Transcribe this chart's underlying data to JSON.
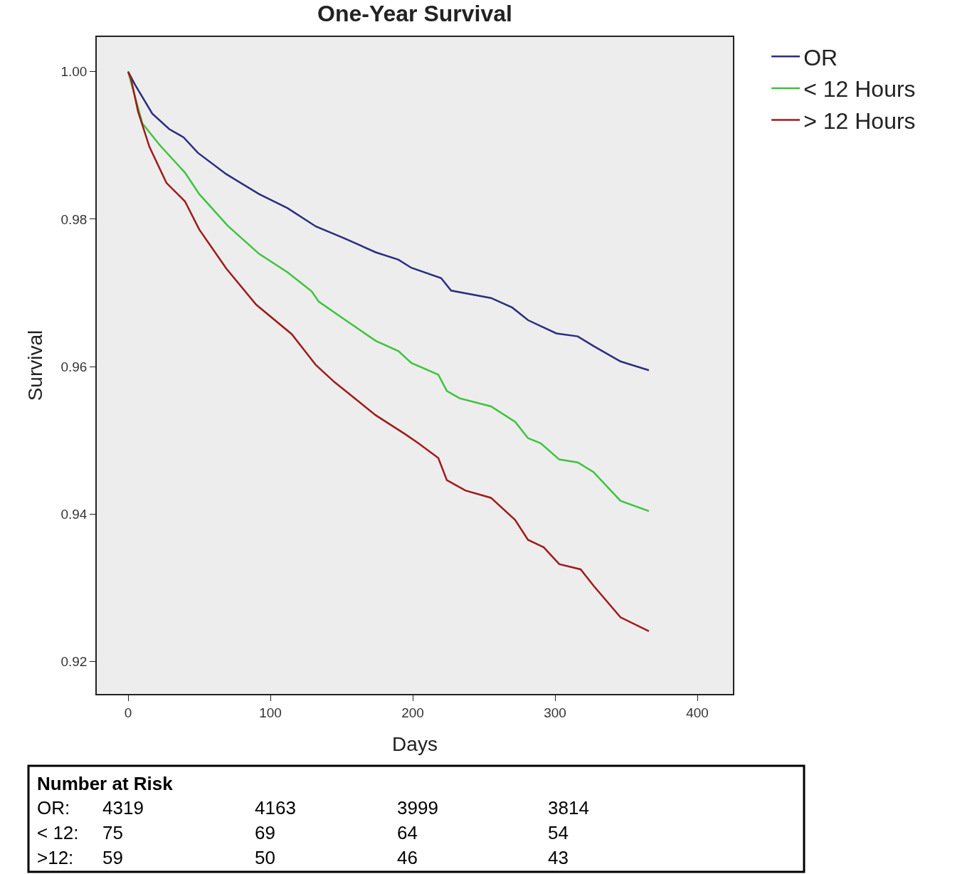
{
  "chart_data": {
    "type": "line",
    "title": "One-Year Survival",
    "xlabel": "Days",
    "ylabel": "Survival",
    "xlim": [
      -22,
      425
    ],
    "ylim": [
      0.9156,
      1.0047
    ],
    "xticks": [
      0,
      100,
      200,
      300,
      400
    ],
    "yticks": [
      0.92,
      0.94,
      0.96,
      0.98,
      {
        "value": 1.0,
        "label": "1.00"
      }
    ],
    "grid": false,
    "legend": "top right",
    "marker": "none",
    "line_style": "solid",
    "series": [
      {
        "name": "OR",
        "color": "#2b2d80",
        "x": [
          0,
          5,
          17,
          29,
          39,
          49,
          69,
          92,
          112,
          132,
          152,
          174,
          190,
          199,
          220,
          227,
          255,
          270,
          281,
          301,
          316,
          327,
          346,
          366
        ],
        "values": [
          1.0,
          0.9982,
          0.9943,
          0.9922,
          0.9911,
          0.989,
          0.9861,
          0.9834,
          0.9815,
          0.979,
          0.9774,
          0.9755,
          0.9745,
          0.9734,
          0.972,
          0.9703,
          0.9693,
          0.968,
          0.9663,
          0.9645,
          0.9641,
          0.9628,
          0.9607,
          0.9595
        ]
      },
      {
        "name": "< 12 Hours",
        "color": "#3cc43c",
        "x": [
          0,
          4,
          10,
          22,
          40,
          50,
          70,
          92,
          112,
          129,
          134,
          152,
          174,
          190,
          199,
          218,
          224,
          233,
          255,
          272,
          281,
          290,
          303,
          316,
          327,
          346,
          366
        ],
        "values": [
          1.0,
          0.9972,
          0.993,
          0.9901,
          0.9863,
          0.9834,
          0.9791,
          0.9753,
          0.9728,
          0.9702,
          0.9688,
          0.9664,
          0.9635,
          0.9621,
          0.9605,
          0.9589,
          0.9567,
          0.9557,
          0.9546,
          0.9525,
          0.9503,
          0.9496,
          0.9474,
          0.947,
          0.9457,
          0.9418,
          0.9404
        ]
      },
      {
        "name": "> 12 Hours",
        "color": "#a01a1a",
        "x": [
          0,
          2,
          7,
          15,
          27,
          40,
          50,
          69,
          90,
          115,
          132,
          145,
          174,
          195,
          204,
          218,
          224,
          237,
          255,
          272,
          281,
          292,
          303,
          318,
          327,
          346,
          366
        ],
        "values": [
          1.0,
          0.9991,
          0.9946,
          0.9898,
          0.9849,
          0.9824,
          0.9786,
          0.9733,
          0.9684,
          0.9644,
          0.9602,
          0.9579,
          0.9534,
          0.9508,
          0.9496,
          0.9476,
          0.9446,
          0.9432,
          0.9422,
          0.9392,
          0.9365,
          0.9355,
          0.9332,
          0.9325,
          0.9303,
          0.926,
          0.9241
        ]
      }
    ],
    "annotations": [
      "Number at Risk",
      "OR:",
      "4319",
      "4163",
      "3999",
      "3814",
      "< 12:",
      "75",
      "69",
      "64",
      "54",
      ">12:",
      "59",
      "50",
      "46",
      "43"
    ]
  }
}
